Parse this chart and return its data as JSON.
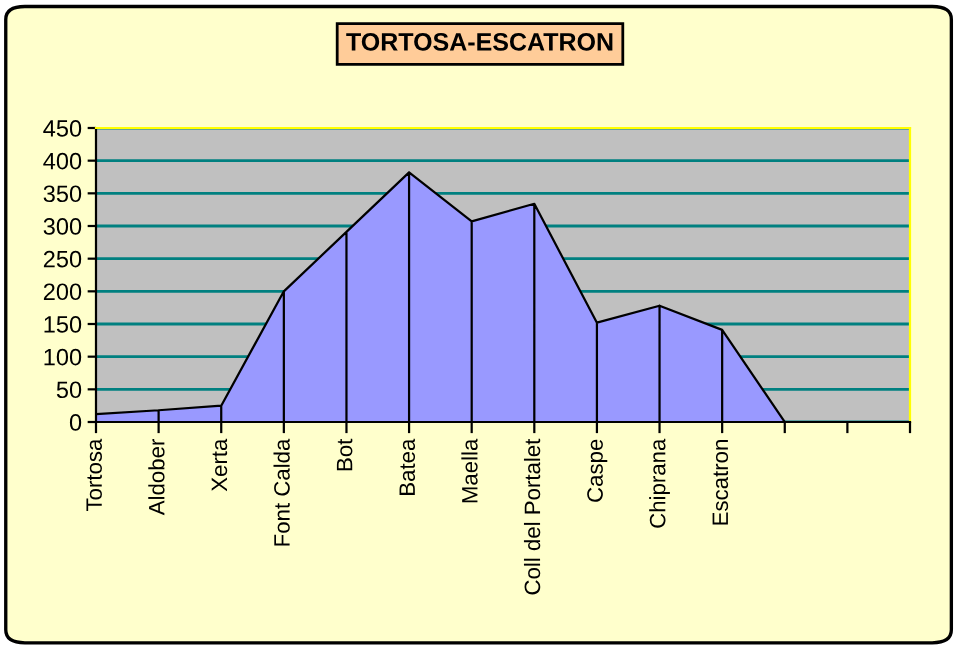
{
  "chart_data": {
    "type": "area",
    "title": "TORTOSA-ESCATRON",
    "categories": [
      "Tortosa",
      "Aldober",
      "Xerta",
      "Font Calda",
      "Bot",
      "Batea",
      "Maella",
      "Coll del Portalet",
      "Caspe",
      "Chiprana",
      "Escatron",
      null,
      null,
      null
    ],
    "values": [
      12,
      18,
      25,
      200,
      291,
      382,
      307,
      334,
      152,
      178,
      141,
      0,
      null,
      null
    ],
    "color": "#9999ff",
    "ylim": [
      0,
      450
    ],
    "yticks": [
      0,
      50,
      100,
      150,
      200,
      250,
      300,
      350,
      400,
      450
    ],
    "grid": "y",
    "legend": false
  }
}
